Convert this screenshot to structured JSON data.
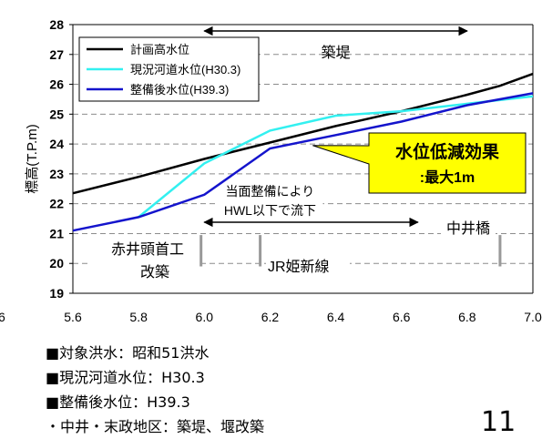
{
  "chart_data": {
    "type": "line",
    "xlabel": "",
    "ylabel": "標高(T.P.m)",
    "xlim": [
      5.6,
      7.0
    ],
    "ylim": [
      19,
      28
    ],
    "x_ticks": [
      "5.6",
      "5.8",
      "6.0",
      "6.2",
      "6.4",
      "6.6",
      "6.8",
      "7.0"
    ],
    "y_ticks": [
      "19",
      "20",
      "21",
      "22",
      "23",
      "24",
      "25",
      "26",
      "27",
      "28"
    ],
    "grid": "horizontal-dashed",
    "legend_position": "top-left",
    "series": [
      {
        "name": "計画高水位",
        "color": "#000000",
        "points": [
          [
            5.6,
            22.35
          ],
          [
            5.8,
            22.9
          ],
          [
            6.0,
            23.5
          ],
          [
            6.2,
            24.05
          ],
          [
            6.4,
            24.6
          ],
          [
            6.6,
            25.1
          ],
          [
            6.8,
            25.65
          ],
          [
            6.9,
            25.95
          ],
          [
            7.0,
            26.35
          ]
        ]
      },
      {
        "name": "現況河道水位(H30.3)",
        "color": "#33f0f0",
        "points": [
          [
            5.8,
            21.55
          ],
          [
            6.0,
            23.35
          ],
          [
            6.2,
            24.45
          ],
          [
            6.4,
            24.95
          ],
          [
            6.6,
            25.1
          ],
          [
            6.8,
            25.35
          ],
          [
            7.0,
            25.6
          ]
        ]
      },
      {
        "name": "整備後水位(H39.3)",
        "color": "#1414cc",
        "points": [
          [
            5.6,
            21.1
          ],
          [
            5.8,
            21.55
          ],
          [
            6.0,
            22.3
          ],
          [
            6.2,
            23.85
          ],
          [
            6.4,
            24.3
          ],
          [
            6.6,
            24.75
          ],
          [
            6.8,
            25.3
          ],
          [
            7.0,
            25.7
          ]
        ]
      }
    ],
    "annotations": {
      "levee": {
        "label": "築堤",
        "x_range": [
          6.0,
          6.8
        ]
      },
      "improvement": {
        "line1": "当面整備により",
        "line2": "HWL以下で流下",
        "x_range": [
          6.0,
          6.65
        ]
      },
      "callout": {
        "line1": "水位低減効果",
        "line2": ":最大1m",
        "fill": "#ffff00"
      },
      "structures": [
        {
          "label": "赤井頭首工",
          "label2": "改築",
          "x": 5.99
        },
        {
          "label": "JR姫新線",
          "label2": "",
          "x": 6.17
        },
        {
          "label": "中井橋",
          "label2": "",
          "x": 6.9
        }
      ]
    },
    "offscreen_left_tick": "6",
    "offscreen_right_tick_clip": "7.0"
  },
  "notes": [
    "■対象洪水：昭和51洪水",
    "■現況河道水位：H30.3",
    "■整備後水位：H39.3",
    "・中井・末政地区：築堤、堰改築"
  ],
  "page_number": "11"
}
